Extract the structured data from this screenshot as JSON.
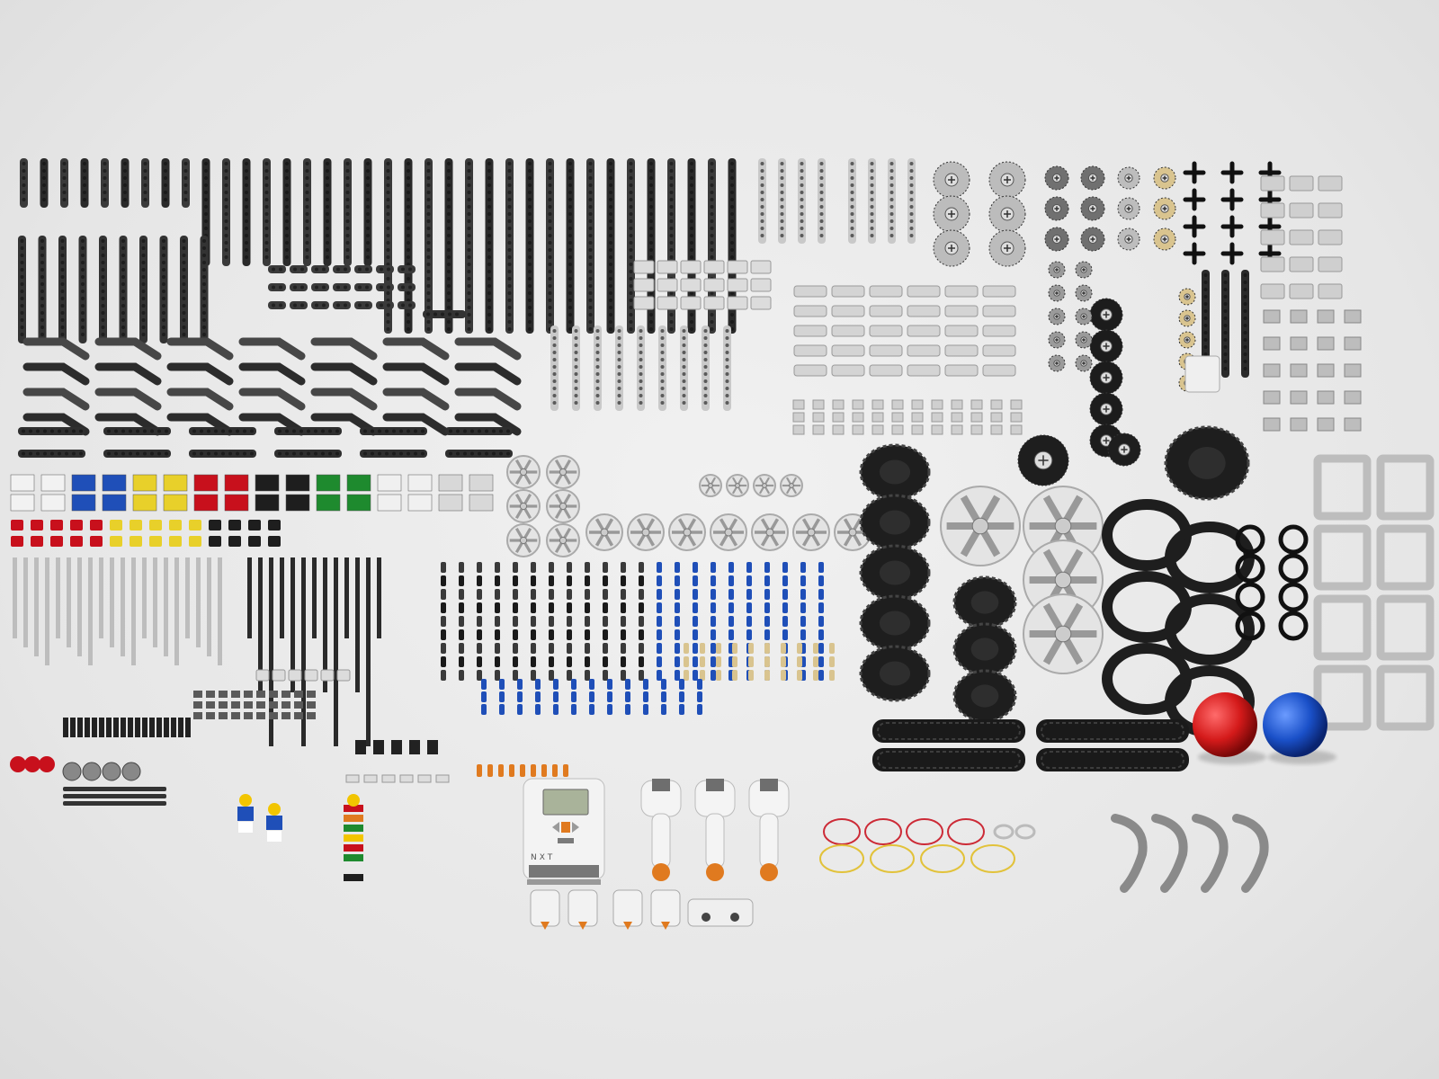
{
  "scene": {
    "background": "#e9e9e9",
    "brick_label": "NXT",
    "colors": {
      "black": "#1e1e1e",
      "dark_gray": "#4a4a4a",
      "mid_gray": "#8f8f8f",
      "light_gray": "#c9c9c9",
      "white": "#f4f4f4",
      "tan": "#d9c48f",
      "blue": "#1f4fb8",
      "red": "#c8101c",
      "yellow": "#e8d02a",
      "green": "#1e8a2e",
      "orange": "#e07a1f",
      "ball_red": "#d41a1a",
      "ball_blue": "#1a50c8"
    },
    "parts": [
      {
        "name": "dark-gray-beams",
        "color": "dark_gray"
      },
      {
        "name": "light-gray-beams",
        "color": "light_gray"
      },
      {
        "name": "gears",
        "color": "mid_gray"
      },
      {
        "name": "tan-gears",
        "color": "tan"
      },
      {
        "name": "bricks",
        "color": "red"
      },
      {
        "name": "pins",
        "color": "blue"
      },
      {
        "name": "rims",
        "color": "light_gray"
      },
      {
        "name": "tires",
        "color": "black"
      },
      {
        "name": "treads",
        "color": "black"
      },
      {
        "name": "rubber-bands",
        "color": "red"
      },
      {
        "name": "balls",
        "color": "ball_red"
      },
      {
        "name": "nxt-brick",
        "color": "white"
      },
      {
        "name": "servo-motors",
        "color": "white"
      },
      {
        "name": "sensors",
        "color": "white"
      },
      {
        "name": "minifigures",
        "color": "yellow"
      }
    ]
  }
}
